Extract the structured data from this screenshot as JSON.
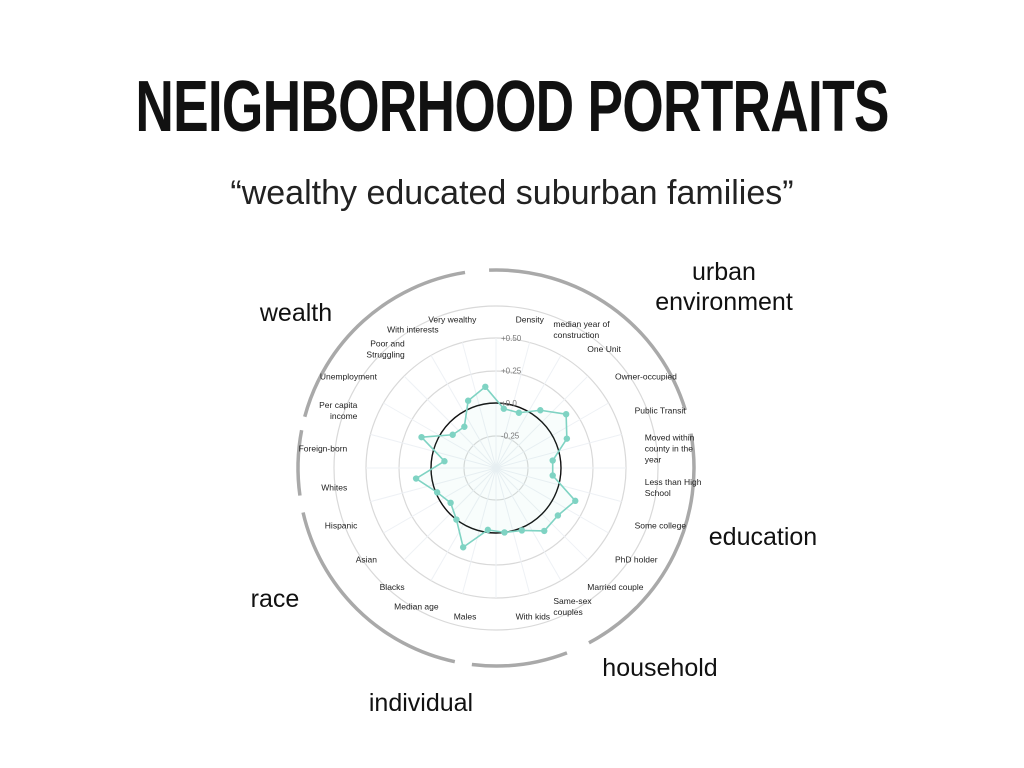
{
  "slide": {
    "title": "NEIGHBORHOOD PORTRAITS",
    "subtitle": "“wealthy educated suburban families”"
  },
  "chart_data": {
    "type": "radar",
    "title": "",
    "ticks": [
      {
        "value": 0.5,
        "label": "+0.50"
      },
      {
        "value": 0.25,
        "label": "+0.25"
      },
      {
        "value": 0.0,
        "label": "+0.0"
      },
      {
        "value": -0.25,
        "label": "-0.25"
      }
    ],
    "range": [
      -0.5,
      0.5
    ],
    "baseline": 0.0,
    "colors": {
      "series": "#7fd3c3",
      "baseline": "#111111",
      "grid": "#d9d9d9",
      "spokes": "#eef1f5",
      "groups": "#a9a9a9"
    },
    "axes": [
      {
        "label": [
          "Density"
        ],
        "value": -0.04
      },
      {
        "label": [
          "median year of",
          "construction"
        ],
        "value": -0.04
      },
      {
        "label": [
          "One Unit"
        ],
        "value": 0.06
      },
      {
        "label": [
          "Owner-occupied"
        ],
        "value": 0.18
      },
      {
        "label": [
          "Public Transit"
        ],
        "value": 0.09
      },
      {
        "label": [
          "Moved within",
          "county in the",
          "year"
        ],
        "value": -0.06
      },
      {
        "label": [
          "Less than High",
          "School"
        ],
        "value": -0.06
      },
      {
        "label": [
          "Some college"
        ],
        "value": 0.16
      },
      {
        "label": [
          "PhD holder"
        ],
        "value": 0.1
      },
      {
        "label": [
          "Married couple"
        ],
        "value": 0.11
      },
      {
        "label": [
          "Same-sex",
          "couples"
        ],
        "value": 0.02
      },
      {
        "label": [
          "With kids"
        ],
        "value": 0.0
      },
      {
        "label": [
          "Males"
        ],
        "value": -0.02
      },
      {
        "label": [
          "Median age"
        ],
        "value": 0.16
      },
      {
        "label": [
          "Blacks"
        ],
        "value": 0.0
      },
      {
        "label": [
          "Asian"
        ],
        "value": -0.06
      },
      {
        "label": [
          "Hispanic"
        ],
        "value": -0.01
      },
      {
        "label": [
          "Whites"
        ],
        "value": 0.12
      },
      {
        "label": [
          "Foreign-born"
        ],
        "value": -0.1
      },
      {
        "label": [
          "Per capita",
          "income"
        ],
        "value": 0.12
      },
      {
        "label": [
          "Unemployment"
        ],
        "value": -0.08
      },
      {
        "label": [
          "Poor and",
          "Struggling"
        ],
        "value": -0.1
      },
      {
        "label": [
          "With interests"
        ],
        "value": 0.06
      },
      {
        "label": [
          "Very wealthy"
        ],
        "value": 0.13
      }
    ],
    "groups": [
      {
        "name": [
          "wealth"
        ],
        "label_lines": 1
      },
      {
        "name": [
          "urban",
          "environment"
        ],
        "label_lines": 2
      },
      {
        "name": [
          "education"
        ],
        "label_lines": 1
      },
      {
        "name": [
          "household"
        ],
        "label_lines": 1
      },
      {
        "name": [
          "individual"
        ],
        "label_lines": 1
      },
      {
        "name": [
          "race"
        ],
        "label_lines": 1
      }
    ]
  }
}
